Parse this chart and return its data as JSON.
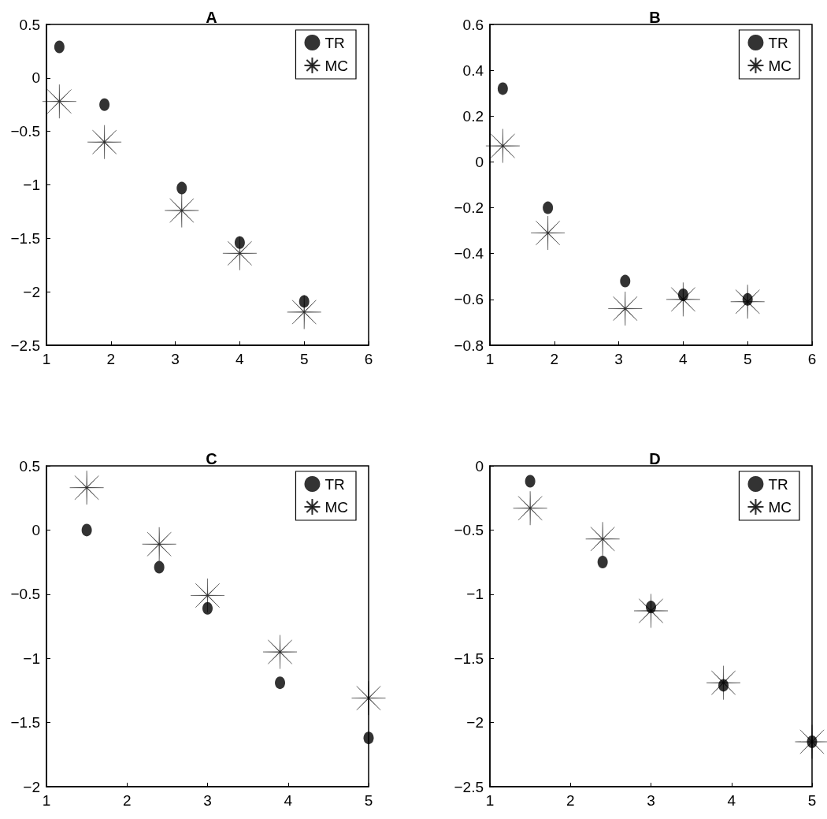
{
  "chart_data": [
    {
      "type": "scatter",
      "title": "A",
      "xlim": [
        1,
        6
      ],
      "xticks": [
        1,
        2,
        3,
        4,
        5,
        6
      ],
      "ylim": [
        -2.5,
        0.5
      ],
      "yticks": [
        -2.5,
        -2,
        -1.5,
        -1,
        -0.5,
        0,
        0.5
      ],
      "grid": false,
      "legend": "top right",
      "series": [
        {
          "name": "TR",
          "color": "#000000",
          "marker": "circle",
          "x": [
            1.2,
            1.9,
            3.1,
            4,
            5
          ],
          "values": [
            0.29,
            -0.25,
            -1.03,
            -1.54,
            -2.09
          ]
        },
        {
          "name": "MC",
          "color": "#000000",
          "marker": "star",
          "x": [
            1.2,
            1.9,
            3.1,
            4,
            5
          ],
          "values": [
            -0.22,
            -0.6,
            -1.24,
            -1.64,
            -2.19
          ]
        }
      ]
    },
    {
      "type": "scatter",
      "title": "B",
      "xlim": [
        1,
        6
      ],
      "xticks": [
        1,
        2,
        3,
        4,
        5,
        6
      ],
      "ylim": [
        -0.8,
        0.6
      ],
      "yticks": [
        -0.8,
        -0.6,
        -0.4,
        -0.2,
        0,
        0.2,
        0.4,
        0.6
      ],
      "grid": false,
      "legend": "top right",
      "series": [
        {
          "name": "TR",
          "color": "#000000",
          "marker": "circle",
          "x": [
            1.2,
            1.9,
            3.1,
            4,
            5
          ],
          "values": [
            0.32,
            -0.2,
            -0.52,
            -0.58,
            -0.6
          ]
        },
        {
          "name": "MC",
          "color": "#000000",
          "marker": "star",
          "x": [
            1.2,
            1.9,
            3.1,
            4,
            5
          ],
          "values": [
            0.07,
            -0.31,
            -0.64,
            -0.6,
            -0.61
          ]
        }
      ]
    },
    {
      "type": "scatter",
      "title": "C",
      "xlim": [
        1,
        5
      ],
      "xticks": [
        1,
        2,
        3,
        4,
        5
      ],
      "ylim": [
        -2,
        0.5
      ],
      "yticks": [
        -2,
        -1.5,
        -1,
        -0.5,
        0,
        0.5
      ],
      "grid": false,
      "legend": "top right",
      "series": [
        {
          "name": "TR",
          "color": "#000000",
          "marker": "circle",
          "x": [
            1.5,
            2.4,
            3,
            3.9,
            5
          ],
          "values": [
            0,
            -0.29,
            -0.61,
            -1.19,
            -1.62
          ]
        },
        {
          "name": "MC",
          "color": "#000000",
          "marker": "star",
          "x": [
            1.5,
            2.4,
            3,
            3.9,
            5
          ],
          "values": [
            0.33,
            -0.11,
            -0.51,
            -0.95,
            -1.31
          ]
        }
      ]
    },
    {
      "type": "scatter",
      "title": "D",
      "xlim": [
        1,
        5
      ],
      "xticks": [
        1,
        2,
        3,
        4,
        5
      ],
      "ylim": [
        -2.5,
        0
      ],
      "yticks": [
        -2.5,
        -2,
        -1.5,
        -1,
        -0.5,
        0
      ],
      "grid": false,
      "legend": "top right",
      "series": [
        {
          "name": "TR",
          "color": "#000000",
          "marker": "circle",
          "x": [
            1.5,
            2.4,
            3,
            3.9,
            5
          ],
          "values": [
            -0.12,
            -0.75,
            -1.1,
            -1.71,
            -2.15
          ]
        },
        {
          "name": "MC",
          "color": "#000000",
          "marker": "star",
          "x": [
            1.5,
            2.4,
            3,
            3.9,
            5
          ],
          "values": [
            -0.33,
            -0.57,
            -1.13,
            -1.69,
            -2.15
          ]
        }
      ]
    }
  ]
}
